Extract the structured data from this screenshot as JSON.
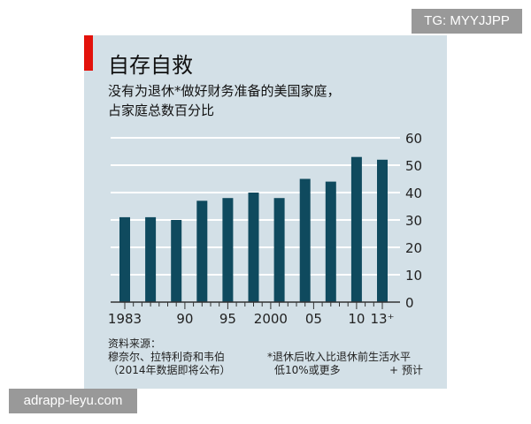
{
  "title": "自存自救",
  "subtitle_lines": [
    "没有为退休*做好财务准备的美国家庭，",
    "占家庭总数百分比"
  ],
  "chart_data": {
    "type": "bar",
    "title": "自存自救",
    "subtitle": "没有为退休*做好财务准备的美国家庭，占家庭总数百分比",
    "x": [
      1983,
      1986,
      1989,
      1992,
      1995,
      1998,
      2001,
      2004,
      2007,
      2010,
      2013
    ],
    "values": [
      31,
      31,
      30,
      37,
      38,
      40,
      38,
      45,
      44,
      53,
      52
    ],
    "x_tick_labels": [
      {
        "year": 1983,
        "label": "1983"
      },
      {
        "year": 1990,
        "label": "90"
      },
      {
        "year": 1995,
        "label": "95"
      },
      {
        "year": 2000,
        "label": "2000"
      },
      {
        "year": 2005,
        "label": "05"
      },
      {
        "year": 2010,
        "label": "10"
      },
      {
        "year": 2013,
        "label": "13⁺"
      }
    ],
    "y_ticks": [
      0,
      10,
      20,
      30,
      40,
      50,
      60
    ],
    "ylim": [
      0,
      60
    ],
    "xlim": [
      1983,
      2013
    ],
    "y_axis_side": "right",
    "grid": true,
    "bar_color": "#0f4a5e",
    "background": "#d3e0e7"
  },
  "source": {
    "label": "资料来源：",
    "line1": "穆奈尔、拉特利奇和韦伯",
    "line2": "（2014年数据即将公布）"
  },
  "notes": {
    "line1": "*退休后收入比退休前生活水平",
    "line2": "低10%或更多",
    "line3": "+ 预计"
  },
  "watermarks": {
    "top": "TG: MYYJJPP",
    "bottom": "adrapp-leyu.com"
  }
}
